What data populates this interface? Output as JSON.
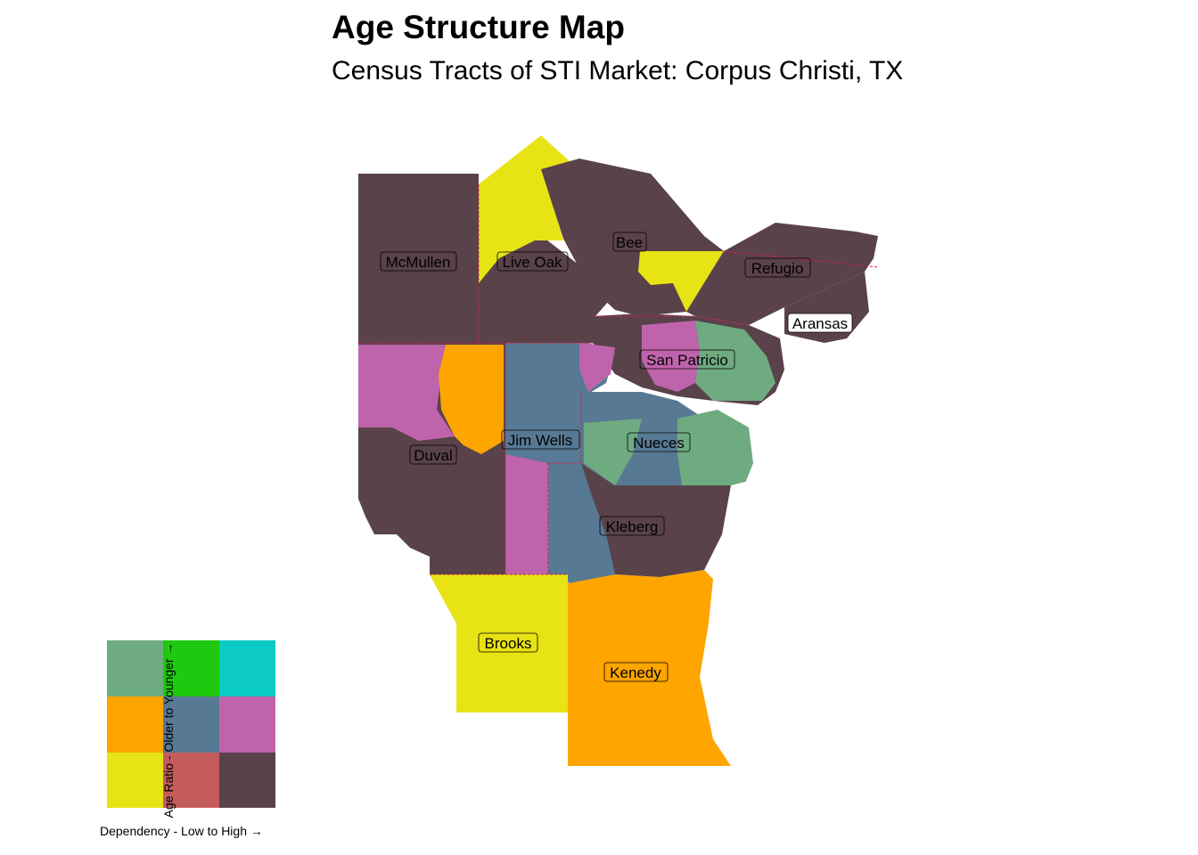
{
  "title": "Age Structure Map",
  "subtitle": "Census Tracts of STI Market: Corpus Christi, TX",
  "counties": [
    {
      "name": "McMullen",
      "color": "#59424a"
    },
    {
      "name": "Live Oak",
      "color": "#59424a"
    },
    {
      "name": "Bee",
      "color": "#59424a"
    },
    {
      "name": "Refugio",
      "color": "#59424a"
    },
    {
      "name": "Aransas",
      "color": "#59424a"
    },
    {
      "name": "San Patricio",
      "color": "#bf64ac"
    },
    {
      "name": "Duval",
      "color": "#59424a"
    },
    {
      "name": "Jim Wells",
      "color": "#577993"
    },
    {
      "name": "Nueces",
      "color": "#6fab80"
    },
    {
      "name": "Kleberg",
      "color": "#59424a"
    },
    {
      "name": "Brooks",
      "color": "#e8e314"
    },
    {
      "name": "Kenedy",
      "color": "#fea500"
    }
  ],
  "legend": {
    "ylabel": "Age Ratio - Older to Younger →",
    "xlabel": "Dependency - Low to High →",
    "grid": [
      [
        "#6fab80",
        "#1ec90f",
        "#0ccac5"
      ],
      [
        "#fea500",
        "#577993",
        "#bf64ac"
      ],
      [
        "#e8e314",
        "#c45c5c",
        "#59424a"
      ]
    ]
  }
}
